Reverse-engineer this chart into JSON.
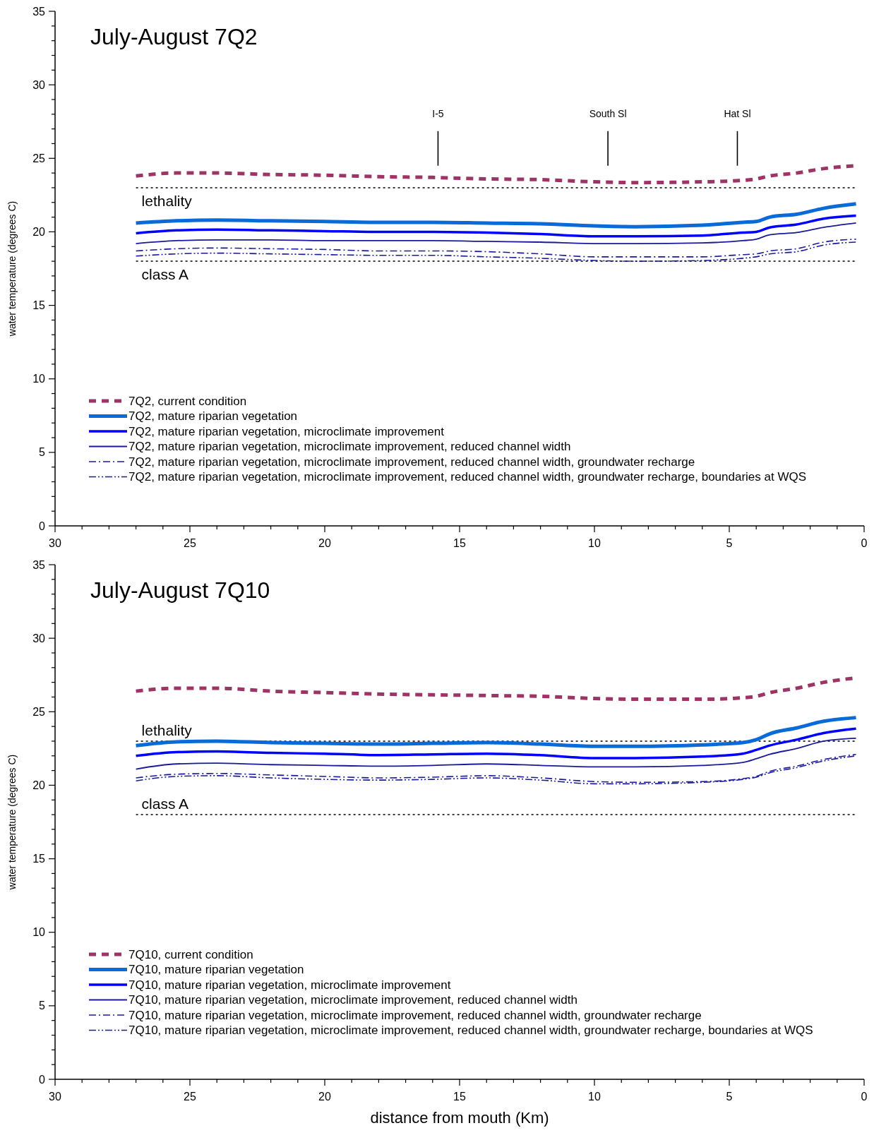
{
  "chart_data": [
    {
      "type": "line",
      "title": "July-August 7Q2",
      "ylabel": "water temperature (degrees C)",
      "x": [
        27,
        25.5,
        24,
        22,
        20,
        18,
        16,
        14,
        12,
        10,
        8.5,
        6,
        4.5,
        4,
        3.5,
        2.5,
        1.5,
        0.3
      ],
      "series": [
        {
          "name": "7Q2, current condition",
          "color": "#9c3566",
          "line_style": "dashed",
          "values": [
            23.8,
            24.0,
            24.0,
            23.9,
            23.85,
            23.75,
            23.7,
            23.6,
            23.55,
            23.4,
            23.35,
            23.4,
            23.5,
            23.6,
            23.8,
            24.0,
            24.3,
            24.5
          ]
        },
        {
          "name": "7Q2, mature riparian vegetation",
          "color": "#0a6ad8",
          "line_style": "solid",
          "values": [
            20.6,
            20.75,
            20.8,
            20.75,
            20.7,
            20.65,
            20.65,
            20.6,
            20.55,
            20.4,
            20.35,
            20.45,
            20.65,
            20.7,
            21.0,
            21.2,
            21.6,
            21.9
          ]
        },
        {
          "name": "7Q2, mature riparian vegetation, microclimate improvement",
          "color": "#0000ff",
          "line_style": "solid",
          "values": [
            19.9,
            20.1,
            20.15,
            20.1,
            20.05,
            20.0,
            20.0,
            19.95,
            19.85,
            19.7,
            19.7,
            19.75,
            19.95,
            20.0,
            20.3,
            20.5,
            20.9,
            21.1
          ]
        },
        {
          "name": "7Q2, mature riparian vegetation, microclimate improvement, reduced channel width",
          "color": "#1a1a9a",
          "line_style": "solid",
          "values": [
            19.2,
            19.4,
            19.45,
            19.45,
            19.4,
            19.4,
            19.4,
            19.35,
            19.3,
            19.2,
            19.2,
            19.25,
            19.4,
            19.5,
            19.8,
            19.95,
            20.3,
            20.6
          ]
        },
        {
          "name": "7Q2, mature riparian vegetation, microclimate improvement, reduced channel width, groundwater recharge",
          "color": "#1a1a9a",
          "line_style": "dashdot",
          "values": [
            18.7,
            18.85,
            18.9,
            18.85,
            18.8,
            18.7,
            18.7,
            18.65,
            18.5,
            18.3,
            18.3,
            18.3,
            18.45,
            18.5,
            18.7,
            18.85,
            19.3,
            19.5
          ]
        },
        {
          "name": "7Q2, mature riparian vegetation, microclimate improvement, reduced channel width, groundwater recharge, boundaries at WQS",
          "color": "#1a1a9a",
          "line_style": "dashdotdot",
          "values": [
            18.35,
            18.5,
            18.55,
            18.5,
            18.45,
            18.4,
            18.4,
            18.3,
            18.2,
            18.05,
            18.0,
            18.05,
            18.2,
            18.3,
            18.5,
            18.65,
            19.1,
            19.3
          ]
        }
      ],
      "ref_lines": [
        {
          "axis": "y",
          "value": 23,
          "label": "lethality",
          "line_style": "dotted",
          "color": "#000000"
        },
        {
          "axis": "y",
          "value": 18,
          "label": "class A",
          "line_style": "dotted",
          "color": "#000000"
        },
        {
          "axis": "x",
          "value": 15.8,
          "label": "I-5",
          "line_style": "solid",
          "color": "#000000"
        },
        {
          "axis": "x",
          "value": 9.5,
          "label": "South Sl",
          "line_style": "solid",
          "color": "#000000"
        },
        {
          "axis": "x",
          "value": 4.7,
          "label": "Hat Sl",
          "line_style": "solid",
          "color": "#000000"
        }
      ],
      "xlim": [
        30,
        0
      ],
      "ylim": [
        0,
        35
      ],
      "xticks": [
        30,
        {
          "value": 29,
          "label": null
        },
        {
          "value": 28,
          "label": null
        },
        {
          "value": 27,
          "label": null
        },
        {
          "value": 26,
          "label": null
        },
        25,
        {
          "value": 24,
          "label": null
        },
        {
          "value": 23,
          "label": null
        },
        {
          "value": 22,
          "label": null
        },
        {
          "value": 21,
          "label": null
        },
        20,
        {
          "value": 19,
          "label": null
        },
        {
          "value": 18,
          "label": null
        },
        {
          "value": 17,
          "label": null
        },
        {
          "value": 16,
          "label": null
        },
        15,
        {
          "value": 14,
          "label": null
        },
        {
          "value": 13,
          "label": null
        },
        {
          "value": 12,
          "label": null
        },
        {
          "value": 11,
          "label": null
        },
        10,
        {
          "value": 9,
          "label": null
        },
        {
          "value": 8,
          "label": null
        },
        {
          "value": 7,
          "label": null
        },
        {
          "value": 6,
          "label": null
        },
        5,
        {
          "value": 4,
          "label": null
        },
        {
          "value": 3,
          "label": null
        },
        {
          "value": 2,
          "label": null
        },
        {
          "value": 1,
          "label": null
        },
        0
      ],
      "yticks": [
        0,
        {
          "value": 1,
          "label": null
        },
        {
          "value": 2,
          "label": null
        },
        {
          "value": 3,
          "label": null
        },
        {
          "value": 4,
          "label": null
        },
        5,
        {
          "value": 6,
          "label": null
        },
        {
          "value": 7,
          "label": null
        },
        {
          "value": 8,
          "label": null
        },
        {
          "value": 9,
          "label": null
        },
        10,
        {
          "value": 11,
          "label": null
        },
        {
          "value": 12,
          "label": null
        },
        {
          "value": 13,
          "label": null
        },
        {
          "value": 14,
          "label": null
        },
        15,
        {
          "value": 16,
          "label": null
        },
        {
          "value": 17,
          "label": null
        },
        {
          "value": 18,
          "label": null
        },
        {
          "value": 19,
          "label": null
        },
        20,
        {
          "value": 21,
          "label": null
        },
        {
          "value": 22,
          "label": null
        },
        {
          "value": 23,
          "label": null
        },
        {
          "value": 24,
          "label": null
        },
        25,
        {
          "value": 26,
          "label": null
        },
        {
          "value": 27,
          "label": null
        },
        {
          "value": 28,
          "label": null
        },
        {
          "value": 29,
          "label": null
        },
        30,
        {
          "value": 31,
          "label": null
        },
        {
          "value": 32,
          "label": null
        },
        {
          "value": 33,
          "label": null
        },
        {
          "value": 34,
          "label": null
        },
        35
      ],
      "legend": "bottom left",
      "grid": false
    },
    {
      "type": "line",
      "title": "July-August 7Q10",
      "ylabel": "water temperature (degrees C)",
      "xlabel": "distance from mouth (Km)",
      "x": [
        27,
        25.5,
        24,
        22,
        20,
        18,
        16,
        14,
        12,
        10,
        8.5,
        6,
        4.5,
        4,
        3.5,
        2.5,
        1.5,
        0.3
      ],
      "series": [
        {
          "name": "7Q10, current condition",
          "color": "#9c3566",
          "line_style": "dashed",
          "values": [
            26.4,
            26.6,
            26.6,
            26.4,
            26.3,
            26.2,
            26.15,
            26.1,
            26.05,
            25.9,
            25.85,
            25.85,
            25.95,
            26.05,
            26.3,
            26.6,
            27.0,
            27.3
          ]
        },
        {
          "name": "7Q10, mature riparian vegetation",
          "color": "#0a6ad8",
          "line_style": "solid",
          "values": [
            22.7,
            22.95,
            23.0,
            22.9,
            22.85,
            22.8,
            22.85,
            22.9,
            22.8,
            22.65,
            22.65,
            22.75,
            22.9,
            23.1,
            23.5,
            23.9,
            24.35,
            24.6
          ]
        },
        {
          "name": "7Q10, mature riparian vegetation, microclimate improvement",
          "color": "#0000ff",
          "line_style": "solid",
          "values": [
            22.0,
            22.25,
            22.3,
            22.2,
            22.15,
            22.05,
            22.1,
            22.15,
            22.05,
            21.85,
            21.85,
            21.95,
            22.15,
            22.4,
            22.7,
            23.1,
            23.55,
            23.85
          ]
        },
        {
          "name": "7Q10, mature riparian vegetation, microclimate improvement, reduced channel width",
          "color": "#1a1a9a",
          "line_style": "solid",
          "values": [
            21.1,
            21.45,
            21.5,
            21.4,
            21.35,
            21.3,
            21.35,
            21.45,
            21.35,
            21.25,
            21.25,
            21.35,
            21.55,
            21.8,
            22.1,
            22.5,
            23.0,
            23.2
          ]
        },
        {
          "name": "7Q10, mature riparian vegetation, microclimate improvement, reduced channel width, groundwater recharge",
          "color": "#1a1a9a",
          "line_style": "dashdot",
          "values": [
            20.5,
            20.75,
            20.8,
            20.7,
            20.6,
            20.5,
            20.55,
            20.65,
            20.5,
            20.25,
            20.2,
            20.25,
            20.45,
            20.6,
            20.95,
            21.3,
            21.75,
            22.1
          ]
        },
        {
          "name": "7Q10, mature riparian vegetation, microclimate improvement, reduced channel width, groundwater recharge, boundaries at WQS",
          "color": "#1a1a9a",
          "line_style": "dashdotdot",
          "values": [
            20.3,
            20.6,
            20.65,
            20.5,
            20.4,
            20.35,
            20.4,
            20.5,
            20.35,
            20.1,
            20.1,
            20.2,
            20.4,
            20.55,
            20.85,
            21.2,
            21.65,
            22.0
          ]
        }
      ],
      "ref_lines": [
        {
          "axis": "y",
          "value": 23,
          "label": "lethality",
          "line_style": "dotted",
          "color": "#000000"
        },
        {
          "axis": "y",
          "value": 18,
          "label": "class A",
          "line_style": "dotted",
          "color": "#000000"
        }
      ],
      "xlim": [
        30,
        0
      ],
      "ylim": [
        0,
        35
      ],
      "xticks": [
        30,
        {
          "value": 29,
          "label": null
        },
        {
          "value": 28,
          "label": null
        },
        {
          "value": 27,
          "label": null
        },
        {
          "value": 26,
          "label": null
        },
        25,
        {
          "value": 24,
          "label": null
        },
        {
          "value": 23,
          "label": null
        },
        {
          "value": 22,
          "label": null
        },
        {
          "value": 21,
          "label": null
        },
        20,
        {
          "value": 19,
          "label": null
        },
        {
          "value": 18,
          "label": null
        },
        {
          "value": 17,
          "label": null
        },
        {
          "value": 16,
          "label": null
        },
        15,
        {
          "value": 14,
          "label": null
        },
        {
          "value": 13,
          "label": null
        },
        {
          "value": 12,
          "label": null
        },
        {
          "value": 11,
          "label": null
        },
        10,
        {
          "value": 9,
          "label": null
        },
        {
          "value": 8,
          "label": null
        },
        {
          "value": 7,
          "label": null
        },
        {
          "value": 6,
          "label": null
        },
        5,
        {
          "value": 4,
          "label": null
        },
        {
          "value": 3,
          "label": null
        },
        {
          "value": 2,
          "label": null
        },
        {
          "value": 1,
          "label": null
        },
        0
      ],
      "yticks": [
        0,
        {
          "value": 1,
          "label": null
        },
        {
          "value": 2,
          "label": null
        },
        {
          "value": 3,
          "label": null
        },
        {
          "value": 4,
          "label": null
        },
        5,
        {
          "value": 6,
          "label": null
        },
        {
          "value": 7,
          "label": null
        },
        {
          "value": 8,
          "label": null
        },
        {
          "value": 9,
          "label": null
        },
        10,
        {
          "value": 11,
          "label": null
        },
        {
          "value": 12,
          "label": null
        },
        {
          "value": 13,
          "label": null
        },
        {
          "value": 14,
          "label": null
        },
        15,
        {
          "value": 16,
          "label": null
        },
        {
          "value": 17,
          "label": null
        },
        {
          "value": 18,
          "label": null
        },
        {
          "value": 19,
          "label": null
        },
        20,
        {
          "value": 21,
          "label": null
        },
        {
          "value": 22,
          "label": null
        },
        {
          "value": 23,
          "label": null
        },
        {
          "value": 24,
          "label": null
        },
        25,
        {
          "value": 26,
          "label": null
        },
        {
          "value": 27,
          "label": null
        },
        {
          "value": 28,
          "label": null
        },
        {
          "value": 29,
          "label": null
        },
        30,
        {
          "value": 31,
          "label": null
        },
        {
          "value": 32,
          "label": null
        },
        {
          "value": 33,
          "label": null
        },
        {
          "value": 34,
          "label": null
        },
        35
      ],
      "legend": "bottom left",
      "grid": false
    }
  ]
}
